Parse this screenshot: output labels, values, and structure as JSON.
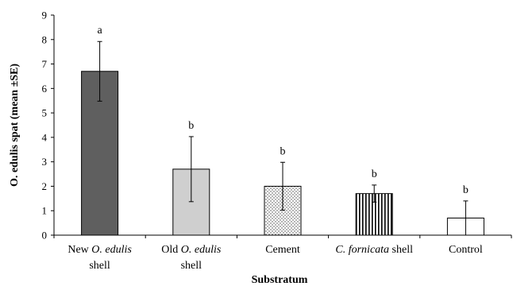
{
  "chart_data": {
    "type": "bar",
    "xlabel": "Substratum",
    "ylabel": "O. edulis spat (mean ±SE)",
    "ylim": [
      0,
      9
    ],
    "yticks": [
      0,
      1,
      2,
      3,
      4,
      5,
      6,
      7,
      8,
      9
    ],
    "grid": false,
    "categories": [
      {
        "lines": [
          [
            {
              "t": "New ",
              "i": false
            },
            {
              "t": "O. edulis",
              "i": true
            }
          ],
          [
            {
              "t": "shell",
              "i": false
            }
          ]
        ]
      },
      {
        "lines": [
          [
            {
              "t": "Old ",
              "i": false
            },
            {
              "t": "O. edulis",
              "i": true
            }
          ],
          [
            {
              "t": "shell",
              "i": false
            }
          ]
        ]
      },
      {
        "lines": [
          [
            {
              "t": "Cement",
              "i": false
            }
          ]
        ]
      },
      {
        "lines": [
          [
            {
              "t": "C. fornicata",
              "i": true
            },
            {
              "t": " shell",
              "i": false
            }
          ]
        ]
      },
      {
        "lines": [
          [
            {
              "t": "Control",
              "i": false
            }
          ]
        ]
      }
    ],
    "values": [
      6.7,
      2.7,
      2.0,
      1.7,
      0.7
    ],
    "errors": [
      1.22,
      1.33,
      0.98,
      0.35,
      0.7
    ],
    "significance": [
      "a",
      "b",
      "b",
      "b",
      "b"
    ],
    "fills": [
      "dark-gray",
      "light-gray",
      "dotted",
      "vertical-stripes",
      "white"
    ],
    "colors": {
      "dark": "#5f5f5f",
      "light": "#cfcfcf",
      "white": "#ffffff",
      "stroke": "#000000"
    }
  }
}
